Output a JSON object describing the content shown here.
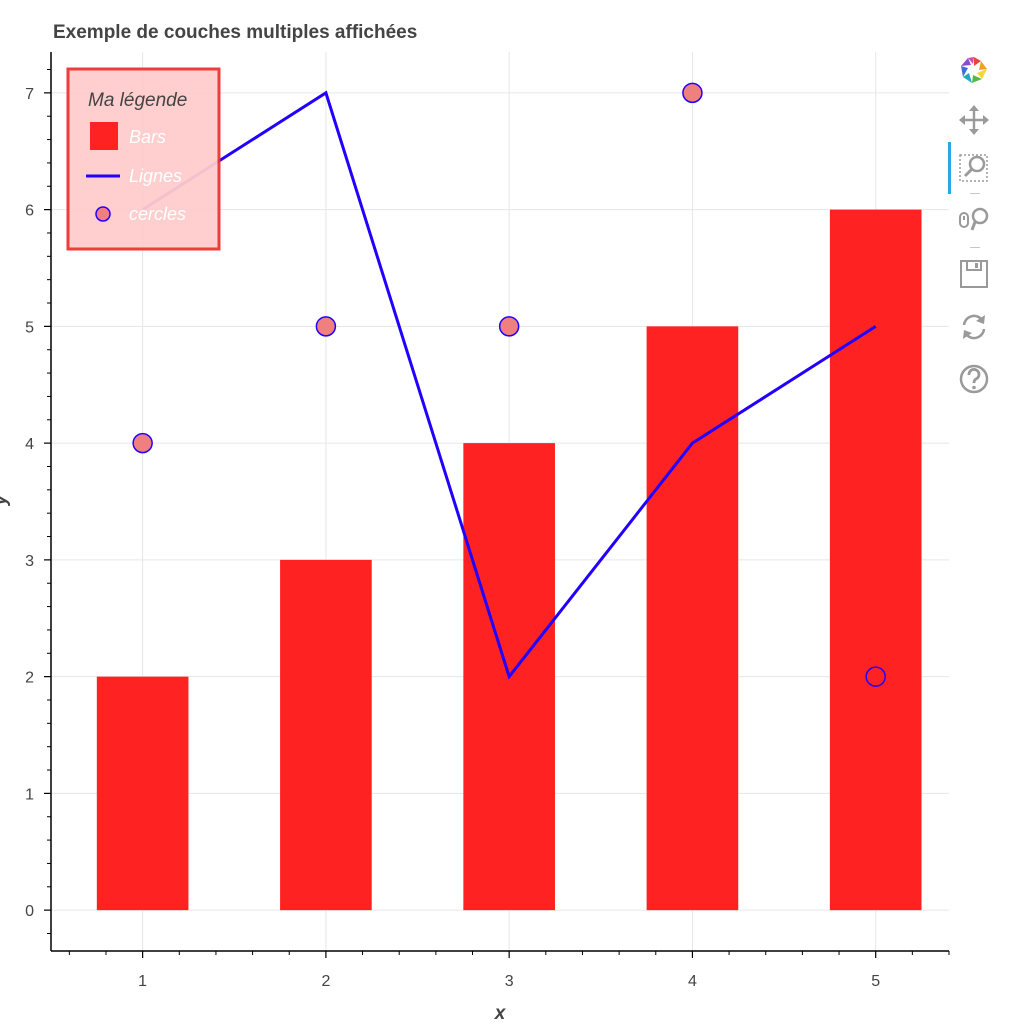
{
  "chart_data": {
    "type": "bar",
    "title": "Exemple de couches multiples affichées",
    "xlabel": "x",
    "ylabel": "y",
    "xlim": [
      0.5,
      5.4
    ],
    "ylim": [
      -0.35,
      7.35
    ],
    "x_ticks": [
      1,
      2,
      3,
      4,
      5
    ],
    "y_ticks": [
      0,
      1,
      2,
      3,
      4,
      5,
      6,
      7
    ],
    "grid": true,
    "legend": {
      "title": "Ma légende",
      "placement": "top-left",
      "entries": [
        "Bars",
        "Lignes",
        "cercles"
      ]
    },
    "series": [
      {
        "name": "Bars",
        "type": "bar",
        "color": "#ff2222",
        "x": [
          1,
          2,
          3,
          4,
          5
        ],
        "values": [
          2,
          3,
          4,
          5,
          6
        ],
        "bar_width": 0.5
      },
      {
        "name": "Lignes",
        "type": "line",
        "color": "#2200ff",
        "x": [
          1,
          2,
          3,
          4,
          5
        ],
        "values": [
          6,
          7,
          2,
          4,
          5
        ]
      },
      {
        "name": "cercles",
        "type": "scatter",
        "fill": "#f08080",
        "stroke": "#2200ff",
        "x": [
          1,
          2,
          3,
          4,
          5
        ],
        "values": [
          4,
          5,
          5,
          7,
          2
        ]
      }
    ]
  },
  "toolbar": {
    "tools": [
      "bokeh-logo-icon",
      "pan-icon",
      "box-zoom-icon",
      "wheel-zoom-icon",
      "save-icon",
      "reset-icon",
      "help-icon"
    ]
  }
}
